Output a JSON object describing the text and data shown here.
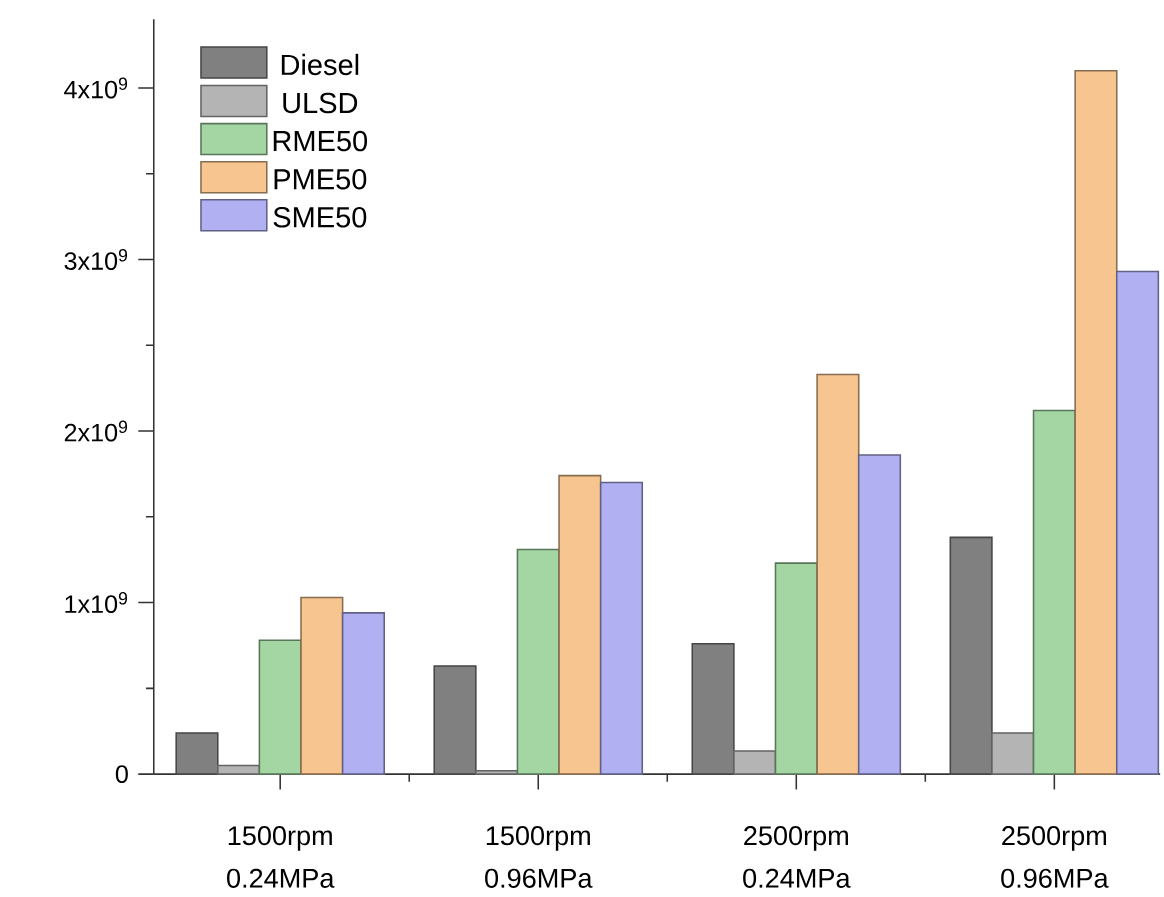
{
  "chart_data": {
    "type": "bar",
    "categories": [
      "1500rpm 0.24MPa",
      "1500rpm 0.96MPa",
      "2500rpm 0.24MPa",
      "2500rpm 0.96MPa"
    ],
    "series": [
      {
        "name": "Diesel",
        "color": "#808080",
        "values": [
          240000000,
          630000000,
          760000000,
          1380000000
        ]
      },
      {
        "name": "ULSD",
        "color": "#b4b4b4",
        "values": [
          50000000,
          20000000,
          135000000,
          240000000
        ]
      },
      {
        "name": "RME50",
        "color": "#a4d6a4",
        "values": [
          780000000,
          1310000000,
          1230000000,
          2120000000
        ]
      },
      {
        "name": "PME50",
        "color": "#f6c590",
        "values": [
          1030000000,
          1740000000,
          2330000000,
          4100000000
        ]
      },
      {
        "name": "SME50",
        "color": "#b0b0f2",
        "values": [
          940000000,
          1700000000,
          1860000000,
          2930000000
        ]
      }
    ],
    "ylim": [
      0,
      4400000000
    ],
    "yticks": [
      0,
      {
        "value": 1000000000,
        "label": "1x10$^{9}$"
      },
      {
        "value": 2000000000,
        "label": "2x10$^{9}$"
      },
      {
        "value": 3000000000,
        "label": "3x10$^{9}$"
      },
      {
        "value": 4000000000,
        "label": "4x10$^{9}$"
      }
    ],
    "legend": "top left"
  }
}
